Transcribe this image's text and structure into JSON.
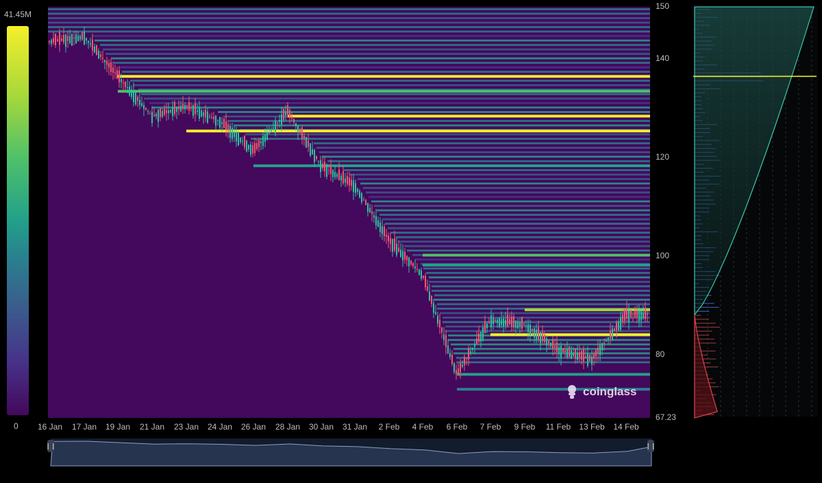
{
  "colorbar": {
    "max_label": "41.45M",
    "min_label": "0"
  },
  "brand": {
    "name": "coinglass",
    "logo_icon": "coinglass-logo-icon"
  },
  "chart_data": {
    "type": "heatmap",
    "title": "",
    "xlabel": "",
    "ylabel": "",
    "ylim": [
      67.23,
      150
    ],
    "y_ticks": [
      "150",
      "140",
      "120",
      "100",
      "80",
      "67.23"
    ],
    "x_ticks": [
      "16 Jan",
      "17 Jan",
      "19 Jan",
      "21 Jan",
      "23 Jan",
      "24 Jan",
      "26 Jan",
      "28 Jan",
      "30 Jan",
      "31 Jan",
      "2 Feb",
      "4 Feb",
      "6 Feb",
      "7 Feb",
      "9 Feb",
      "11 Feb",
      "13 Feb",
      "14 Feb"
    ],
    "colorscale": [
      "#44085c",
      "#47338a",
      "#3a5d8c",
      "#2a7f8f",
      "#22a08a",
      "#4fc06a",
      "#a6d83a",
      "#f5ef2a"
    ],
    "price_path": [
      {
        "date": "16 Jan",
        "price": 143
      },
      {
        "date": "17 Jan",
        "price": 144
      },
      {
        "date": "19 Jan",
        "price": 136
      },
      {
        "date": "21 Jan",
        "price": 128
      },
      {
        "date": "23 Jan",
        "price": 130
      },
      {
        "date": "24 Jan",
        "price": 127
      },
      {
        "date": "26 Jan",
        "price": 121
      },
      {
        "date": "28 Jan",
        "price": 129
      },
      {
        "date": "30 Jan",
        "price": 118
      },
      {
        "date": "31 Jan",
        "price": 114
      },
      {
        "date": "2 Feb",
        "price": 103
      },
      {
        "date": "4 Feb",
        "price": 96
      },
      {
        "date": "6 Feb",
        "price": 76
      },
      {
        "date": "7 Feb",
        "price": 87
      },
      {
        "date": "9 Feb",
        "price": 86
      },
      {
        "date": "11 Feb",
        "price": 81
      },
      {
        "date": "13 Feb",
        "price": 79
      },
      {
        "date": "14 Feb",
        "price": 88
      }
    ],
    "high_intensity_levels": [
      {
        "price": 136,
        "from": "19 Jan",
        "intensity": 1.0
      },
      {
        "price": 133,
        "from": "19 Jan",
        "intensity": 0.75
      },
      {
        "price": 128,
        "from": "28 Jan",
        "intensity": 1.0
      },
      {
        "price": 125,
        "from": "23 Jan",
        "intensity": 0.95
      },
      {
        "price": 118,
        "from": "26 Jan",
        "intensity": 0.6
      },
      {
        "price": 100,
        "from": "4 Feb",
        "intensity": 0.7
      },
      {
        "price": 98,
        "from": "4 Feb",
        "intensity": 0.6
      },
      {
        "price": 89,
        "from": "9 Feb",
        "intensity": 0.9
      },
      {
        "price": 84,
        "from": "7 Feb",
        "intensity": 0.95
      },
      {
        "price": 76,
        "from": "6 Feb",
        "intensity": 0.55
      },
      {
        "price": 73,
        "from": "6 Feb",
        "intensity": 0.45
      }
    ],
    "side_profile": {
      "current_price": 88,
      "peak_level": 136,
      "cumulative_color_above": "#2bb39a",
      "cumulative_color_below": "#e0444a"
    }
  }
}
